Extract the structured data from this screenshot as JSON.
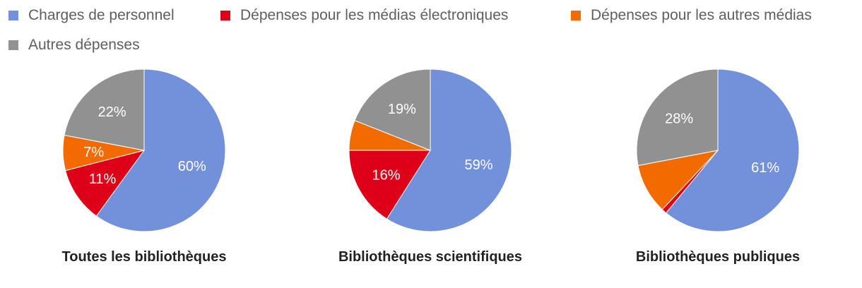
{
  "legend": [
    {
      "label": "Charges de personnel",
      "color": "#7390DB"
    },
    {
      "label": "Dépenses pour les médias électroniques",
      "color": "#DE0019"
    },
    {
      "label": "Dépenses pour les autres médias",
      "color": "#F26B00"
    },
    {
      "label": "Autres dépenses",
      "color": "#919191"
    }
  ],
  "chart_data": [
    {
      "type": "pie",
      "title": "Toutes les bibliothèques",
      "categories": [
        "Charges de personnel",
        "Dépenses pour les médias électroniques",
        "Dépenses pour les autres médias",
        "Autres dépenses"
      ],
      "values": [
        60,
        11,
        7,
        22
      ],
      "labels": [
        "60%",
        "11%",
        "7%",
        "22%"
      ],
      "legend_position": "top"
    },
    {
      "type": "pie",
      "title": "Bibliothèques scientifiques",
      "categories": [
        "Charges de personnel",
        "Dépenses pour les médias électroniques",
        "Dépenses pour les autres médias",
        "Autres dépenses"
      ],
      "values": [
        59,
        16,
        6,
        19
      ],
      "labels": [
        "59%",
        "16%",
        "",
        "19%"
      ],
      "legend_position": "top"
    },
    {
      "type": "pie",
      "title": "Bibliothèques publiques",
      "categories": [
        "Charges de personnel",
        "Dépenses pour les médias électroniques",
        "Dépenses pour les autres médias",
        "Autres dépenses"
      ],
      "values": [
        61,
        1,
        10,
        28
      ],
      "labels": [
        "61%",
        "",
        "",
        "28%"
      ],
      "legend_position": "top"
    }
  ]
}
